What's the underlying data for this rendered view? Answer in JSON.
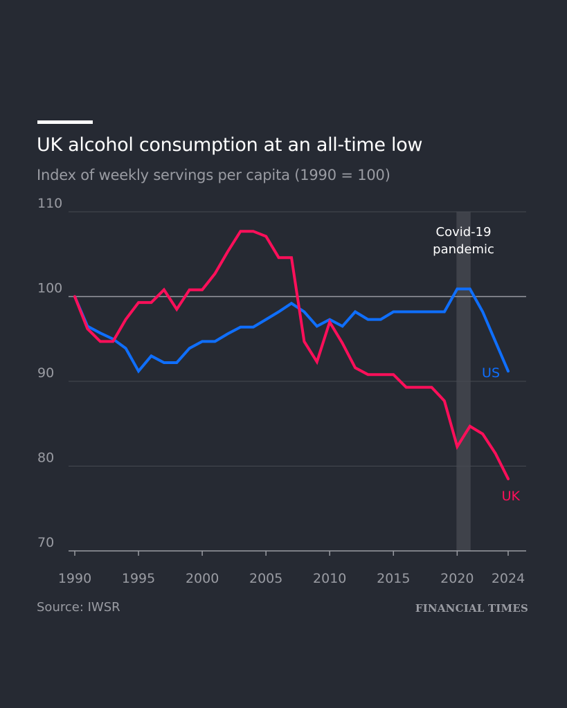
{
  "chart_data": {
    "type": "line",
    "title": "UK alcohol consumption at an all-time low",
    "subtitle": "Index of weekly servings per capita (1990 = 100)",
    "xlabel": "",
    "ylabel": "",
    "xlim": [
      1990,
      2024
    ],
    "ylim": [
      70,
      110
    ],
    "yticks": [
      70,
      80,
      90,
      100,
      110
    ],
    "xticks": [
      1990,
      1995,
      2000,
      2005,
      2010,
      2015,
      2020,
      2024
    ],
    "grid": true,
    "reference_line": 100,
    "annotation": {
      "label_lines": [
        "Covid-19",
        "pandemic"
      ],
      "x_start": 2020,
      "x_end": 2021
    },
    "x": [
      1990,
      1991,
      1992,
      1993,
      1994,
      1995,
      1996,
      1997,
      1998,
      1999,
      2000,
      2001,
      2002,
      2003,
      2004,
      2005,
      2006,
      2007,
      2008,
      2009,
      2010,
      2011,
      2012,
      2013,
      2014,
      2015,
      2016,
      2017,
      2018,
      2019,
      2020,
      2021,
      2022,
      2023,
      2024
    ],
    "series": [
      {
        "name": "US",
        "color": "#0f6fff",
        "values": [
          100,
          96.5,
          95.7,
          95.0,
          93.9,
          91.2,
          93.0,
          92.2,
          92.2,
          93.9,
          94.7,
          94.7,
          95.6,
          96.4,
          96.4,
          97.3,
          98.2,
          99.2,
          98.2,
          96.5,
          97.3,
          96.5,
          98.2,
          97.3,
          97.3,
          98.2,
          98.2,
          98.2,
          98.2,
          98.2,
          100.9,
          100.9,
          98.2,
          94.7,
          91.2
        ]
      },
      {
        "name": "UK",
        "color": "#ff0f5a",
        "values": [
          100,
          96.2,
          94.7,
          94.7,
          97.3,
          99.3,
          99.3,
          100.8,
          98.5,
          100.8,
          100.8,
          102.7,
          105.3,
          107.7,
          107.7,
          107.1,
          104.6,
          104.6,
          94.7,
          92.3,
          97.0,
          94.5,
          91.6,
          90.8,
          90.8,
          90.8,
          89.3,
          89.3,
          89.3,
          87.7,
          82.3,
          84.7,
          83.8,
          81.5,
          78.5
        ]
      }
    ]
  },
  "footer": {
    "source": "Source: IWSR",
    "brand": "FINANCIAL TIMES"
  }
}
